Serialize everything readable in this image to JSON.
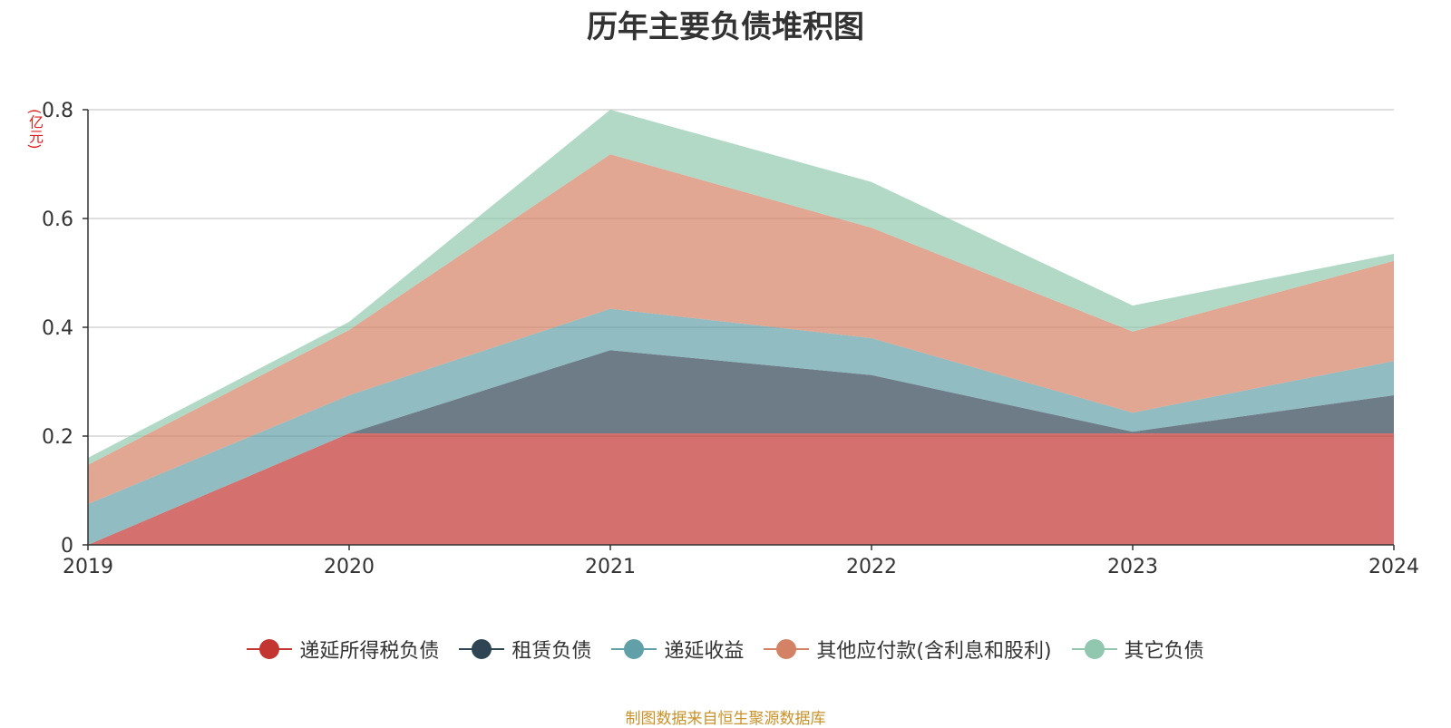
{
  "chart_data": {
    "type": "area",
    "stacked": true,
    "title": "历年主要负债堆积图",
    "ylabel": "(亿元)",
    "ylim": [
      0,
      0.8
    ],
    "yticks": [
      0,
      0.2,
      0.4,
      0.6,
      0.8
    ],
    "ytick_labels": [
      "0",
      "0.2",
      "0.4",
      "0.6",
      "0.8"
    ],
    "grid": true,
    "legend_position": "bottom",
    "categories": [
      "2019",
      "2020",
      "2021",
      "2022",
      "2023",
      "2024"
    ],
    "series": [
      {
        "name": "递延所得税负债",
        "color": "#c23531",
        "values": [
          0,
          0.205,
          0.205,
          0.205,
          0.205,
          0.205
        ]
      },
      {
        "name": "租赁负债",
        "color": "#2f4554",
        "values": [
          0,
          0,
          0.153,
          0.107,
          0.003,
          0.07
        ]
      },
      {
        "name": "递延收益",
        "color": "#61a0a8",
        "values": [
          0.075,
          0.07,
          0.076,
          0.068,
          0.035,
          0.063
        ]
      },
      {
        "name": "其他应付款(含利息和股利)",
        "color": "#d48265",
        "values": [
          0.072,
          0.12,
          0.284,
          0.203,
          0.149,
          0.184
        ]
      },
      {
        "name": "其它负债",
        "color": "#91c7ae",
        "values": [
          0.013,
          0.015,
          0.082,
          0.084,
          0.048,
          0.013
        ]
      }
    ]
  },
  "source_note": "制图数据来自恒生聚源数据库"
}
